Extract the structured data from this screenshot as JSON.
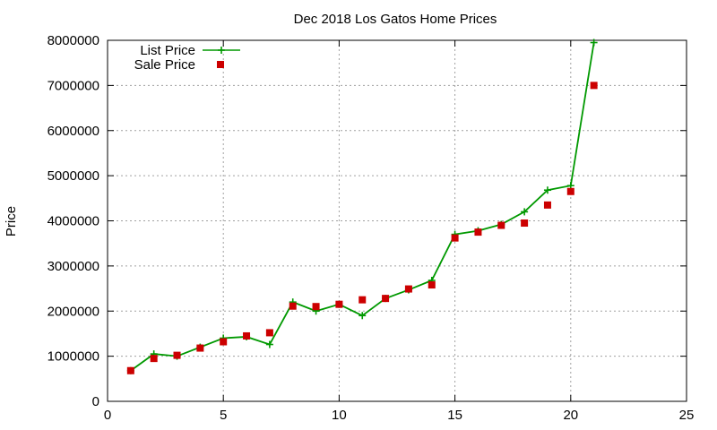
{
  "chart_data": {
    "type": "line",
    "title": "Dec 2018 Los Gatos Home Prices",
    "xlabel": "",
    "ylabel": "Price",
    "xlim": [
      0,
      25
    ],
    "ylim": [
      0,
      8000000
    ],
    "x_ticks": [
      "0",
      "5",
      "10",
      "15",
      "20",
      "25"
    ],
    "y_ticks": [
      "0",
      "1000000",
      "2000000",
      "3000000",
      "4000000",
      "5000000",
      "6000000",
      "7000000",
      "8000000"
    ],
    "grid": true,
    "legend_position": "top-left",
    "series": [
      {
        "name": "List Price",
        "style": "line-with-plus-markers",
        "color": "#009900",
        "x": [
          1,
          2,
          3,
          4,
          5,
          6,
          7,
          8,
          9,
          10,
          11,
          12,
          13,
          14,
          15,
          16,
          17,
          18,
          19,
          20,
          21
        ],
        "values": [
          680000,
          1050000,
          1000000,
          1200000,
          1400000,
          1430000,
          1260000,
          2200000,
          2000000,
          2150000,
          1900000,
          2280000,
          2470000,
          2680000,
          3700000,
          3780000,
          3920000,
          4200000,
          4680000,
          4780000,
          7950000
        ]
      },
      {
        "name": "Sale Price",
        "style": "square-markers",
        "color": "#cc0000",
        "x": [
          1,
          2,
          3,
          4,
          5,
          6,
          7,
          8,
          9,
          10,
          11,
          12,
          13,
          14,
          15,
          16,
          17,
          18,
          19,
          20,
          21
        ],
        "values": [
          680000,
          950000,
          1020000,
          1180000,
          1320000,
          1450000,
          1520000,
          2110000,
          2100000,
          2150000,
          2250000,
          2280000,
          2490000,
          2580000,
          3620000,
          3750000,
          3900000,
          3950000,
          4350000,
          4650000,
          7000000
        ]
      }
    ]
  }
}
